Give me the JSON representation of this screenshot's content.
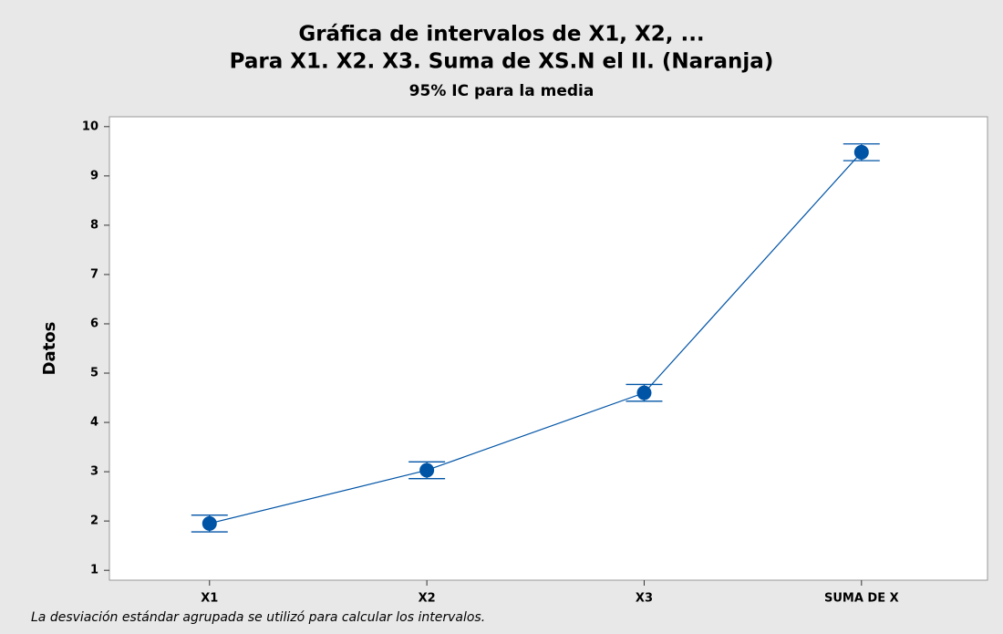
{
  "chart_data": {
    "type": "interval",
    "title": "Gráfica de intervalos de X1, X2, ...",
    "subtitle": "Para X1. X2. X3. Suma de XS.N el II. (Naranja)",
    "subtitle2": "95% IC para la media",
    "y_label": "Datos",
    "note": "La desviación estándar agrupada se utilizó para calcular los intervalos.",
    "categories": [
      "X1",
      "X2",
      "X3",
      "SUMA DE X"
    ],
    "series": [
      {
        "color": "#0054a6",
        "values": [
          1.95,
          3.03,
          4.6,
          9.48
        ],
        "lower": [
          1.78,
          2.86,
          4.43,
          9.31
        ],
        "upper": [
          2.12,
          3.2,
          4.77,
          9.65
        ]
      }
    ],
    "ylim": [
      0.8,
      10.2
    ],
    "yticks": [
      1,
      2,
      3,
      4,
      5,
      6,
      7,
      8,
      9,
      10
    ],
    "grid": false
  }
}
